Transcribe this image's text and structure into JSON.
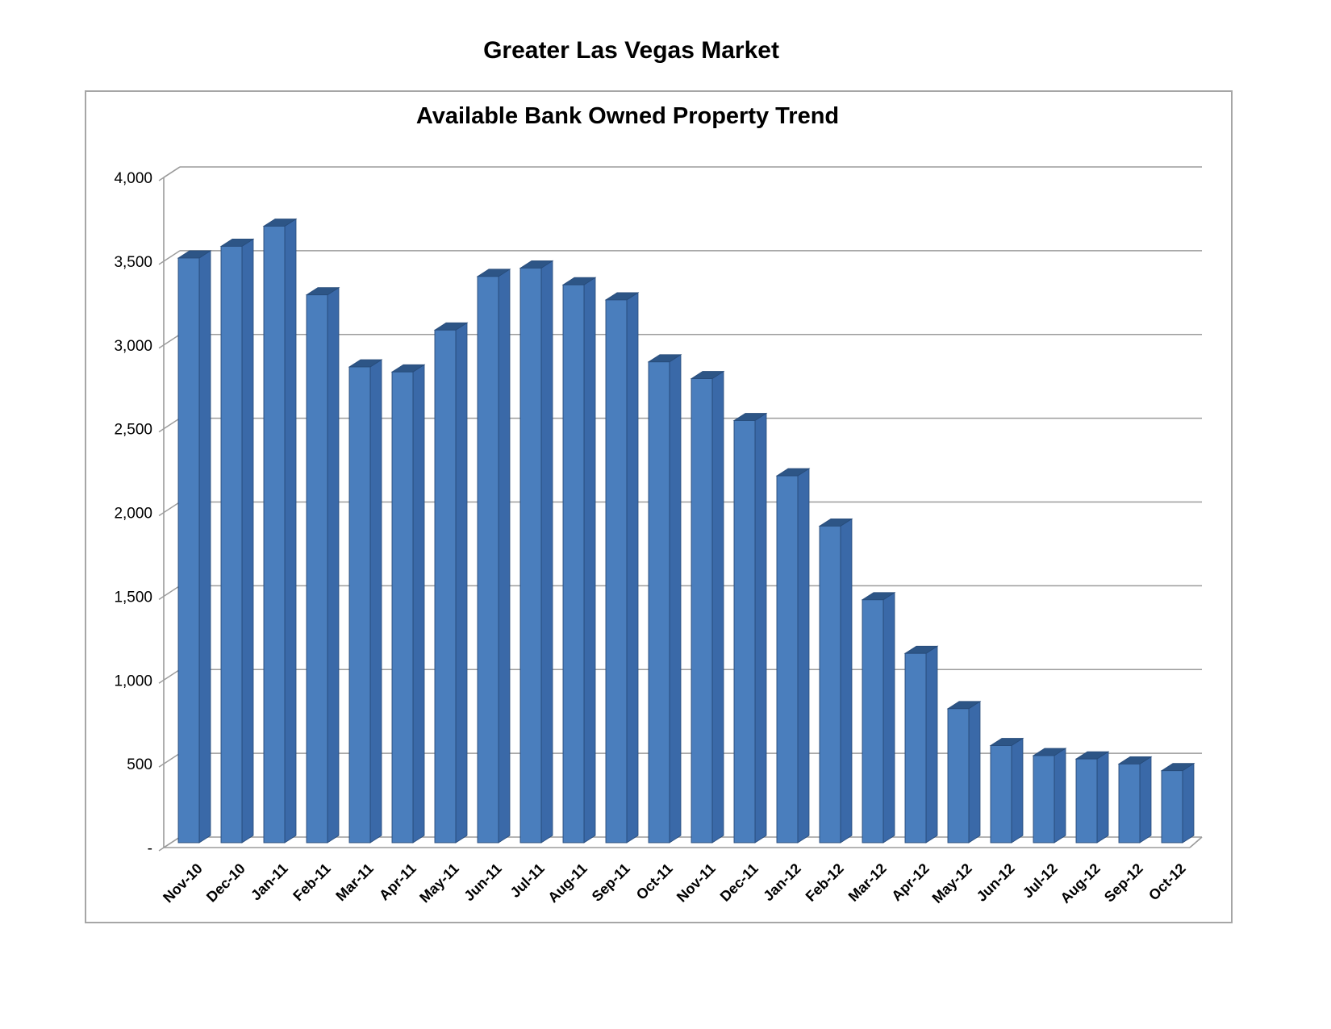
{
  "page_title": "Greater Las Vegas Market",
  "chart_data": {
    "type": "bar",
    "variant": "3d-column",
    "title": "Available Bank Owned Property Trend",
    "categories": [
      "Nov-10",
      "Dec-10",
      "Jan-11",
      "Feb-11",
      "Mar-11",
      "Apr-11",
      "May-11",
      "Jun-11",
      "Jul-11",
      "Aug-11",
      "Sep-11",
      "Oct-11",
      "Nov-11",
      "Dec-11",
      "Jan-12",
      "Feb-12",
      "Mar-12",
      "Apr-12",
      "May-12",
      "Jun-12",
      "Jul-12",
      "Aug-12",
      "Sep-12",
      "Oct-12"
    ],
    "values": [
      3490,
      3560,
      3680,
      3270,
      2840,
      2810,
      3060,
      3380,
      3430,
      3330,
      3240,
      2870,
      2770,
      2520,
      2190,
      1890,
      1450,
      1130,
      800,
      580,
      520,
      500,
      470,
      430
    ],
    "xlabel": "",
    "ylabel": "",
    "ylim": [
      0,
      4000
    ],
    "ytick_interval": 500,
    "ytick_labels_bottom_to_top": [
      "-",
      "500",
      "1,000",
      "1,500",
      "2,000",
      "2,500",
      "3,000",
      "3,500",
      "4,000"
    ],
    "grid": true,
    "legend": false,
    "colors": {
      "bar_front": "#4a7ebd",
      "bar_side": "#3a69a8",
      "bar_top": "#2d5586",
      "bar_edge": "#274b79",
      "gridline": "#9b9b9b",
      "axis": "#9b9b9b",
      "frame_border": "#a6a6a6",
      "text": "#000000"
    }
  }
}
